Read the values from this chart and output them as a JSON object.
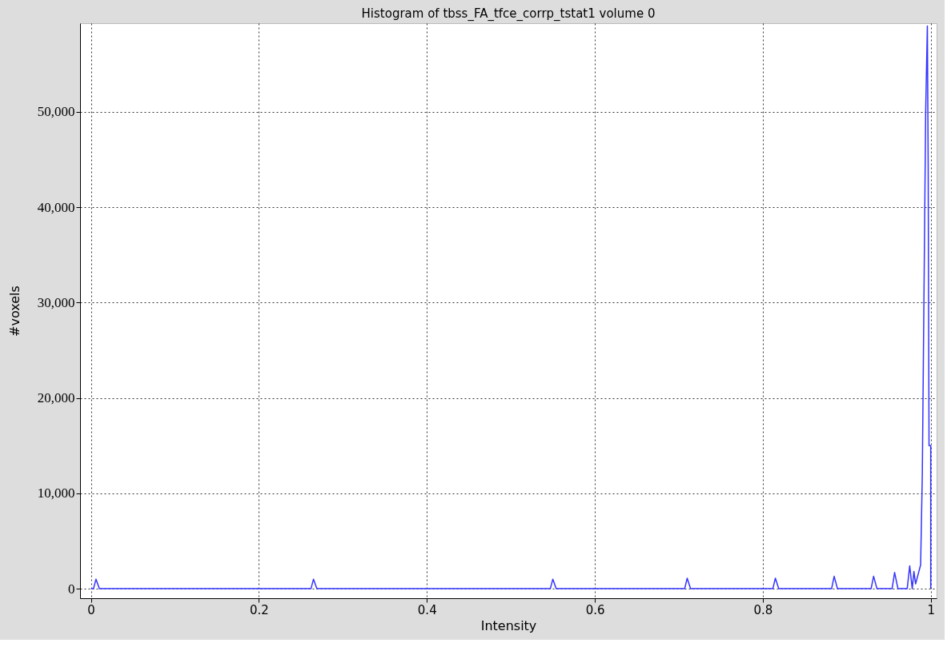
{
  "chart_data": {
    "type": "line",
    "title": "Histogram of tbss_FA_tfce_corrp_tstat1 volume 0",
    "xlabel": "Intensity",
    "ylabel": "#voxels",
    "x": [
      0.0,
      0.003,
      0.006,
      0.01,
      0.262,
      0.265,
      0.269,
      0.547,
      0.55,
      0.554,
      0.707,
      0.71,
      0.714,
      0.812,
      0.815,
      0.819,
      0.882,
      0.885,
      0.889,
      0.929,
      0.932,
      0.936,
      0.954,
      0.957,
      0.961,
      0.972,
      0.975,
      0.978,
      0.98,
      0.982,
      0.988,
      0.99,
      0.992,
      0.994,
      0.996,
      0.997,
      0.998,
      1.0,
      1.0
    ],
    "series": [
      {
        "color": "#3333ff",
        "values": [
          0,
          0,
          1000,
          0,
          0,
          1000,
          0,
          0,
          1000,
          0,
          0,
          1100,
          0,
          0,
          1100,
          0,
          0,
          1300,
          0,
          0,
          1300,
          0,
          0,
          1700,
          0,
          0,
          2400,
          0,
          1800,
          500,
          2500,
          12000,
          31000,
          50000,
          59000,
          44000,
          15000,
          15000,
          0
        ]
      }
    ],
    "xlim": [
      -0.013,
      1.007
    ],
    "ylim": [
      -1000,
      59300
    ],
    "xticks": [
      0,
      0.2,
      0.4,
      0.6,
      0.8,
      1
    ],
    "yticks": [
      {
        "value": 0,
        "label": "0"
      },
      {
        "value": 10000,
        "label": "10,000"
      },
      {
        "value": 20000,
        "label": "20,000"
      },
      {
        "value": 30000,
        "label": "30,000"
      },
      {
        "value": 40000,
        "label": "40,000"
      },
      {
        "value": 50000,
        "label": "50,000"
      }
    ],
    "grid": true,
    "marker": "none",
    "line_style": "solid"
  }
}
